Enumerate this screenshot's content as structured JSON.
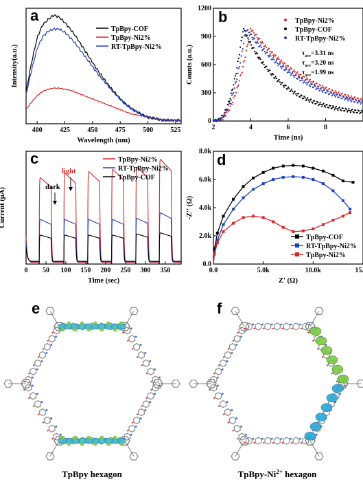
{
  "panels": {
    "a": "a",
    "b": "b",
    "c": "c",
    "d": "d",
    "e": "e",
    "f": "f"
  },
  "captions": {
    "e": "TpBpy hexagon",
    "f_main": "TpBpy-Ni",
    "f_sup": "2+",
    "f_tail": " hexagon"
  },
  "colors": {
    "black": "#000000",
    "red": "#d62728",
    "blue": "#1f3fbf"
  },
  "chart_data": [
    {
      "id": "a",
      "type": "line",
      "xlabel": "Wavelength (nm)",
      "ylabel": "Intensity(a.u.)",
      "xlim": [
        390,
        530
      ],
      "ylim": [
        0,
        1
      ],
      "xticks": [
        400,
        425,
        450,
        475,
        500,
        525
      ],
      "series": [
        {
          "name": "TpBpy-COF",
          "color": "#000000",
          "x": [
            390,
            395,
            400,
            405,
            410,
            415,
            420,
            425,
            430,
            435,
            440,
            445,
            450,
            455,
            460,
            465,
            470,
            475,
            480,
            485,
            490,
            495,
            500,
            505,
            510,
            515,
            520,
            525,
            530
          ],
          "y": [
            0.28,
            0.55,
            0.78,
            0.9,
            0.95,
            0.99,
            0.97,
            0.92,
            0.86,
            0.79,
            0.71,
            0.63,
            0.55,
            0.47,
            0.4,
            0.33,
            0.27,
            0.21,
            0.16,
            0.12,
            0.09,
            0.06,
            0.04,
            0.03,
            0.02,
            0.01,
            0.01,
            0.01,
            0.01
          ]
        },
        {
          "name": "TpBpy-Ni2%",
          "color": "#d62728",
          "x": [
            390,
            395,
            400,
            405,
            410,
            415,
            420,
            425,
            430,
            435,
            440,
            445,
            450,
            455,
            460,
            465,
            470,
            475,
            480,
            485,
            490,
            495,
            500,
            505,
            510,
            515,
            520,
            525,
            530
          ],
          "y": [
            0.11,
            0.18,
            0.24,
            0.28,
            0.3,
            0.31,
            0.31,
            0.3,
            0.29,
            0.27,
            0.25,
            0.23,
            0.21,
            0.19,
            0.17,
            0.15,
            0.13,
            0.11,
            0.09,
            0.07,
            0.06,
            0.05,
            0.04,
            0.03,
            0.02,
            0.02,
            0.01,
            0.01,
            0.01
          ]
        },
        {
          "name": "RT-TpBpy-Ni2%",
          "color": "#1f3fbf",
          "x": [
            390,
            395,
            400,
            405,
            410,
            415,
            420,
            425,
            430,
            435,
            440,
            445,
            450,
            455,
            460,
            465,
            470,
            475,
            480,
            485,
            490,
            495,
            500,
            505,
            510,
            515,
            520,
            525,
            530
          ],
          "y": [
            0.25,
            0.48,
            0.68,
            0.79,
            0.84,
            0.86,
            0.86,
            0.83,
            0.78,
            0.72,
            0.65,
            0.58,
            0.51,
            0.44,
            0.38,
            0.32,
            0.26,
            0.21,
            0.16,
            0.12,
            0.09,
            0.06,
            0.04,
            0.03,
            0.02,
            0.01,
            0.01,
            0.01,
            0.01
          ]
        }
      ]
    },
    {
      "id": "b",
      "type": "scatter",
      "xlabel": "Time (ns)",
      "ylabel": "Counts (a.u.)",
      "xlim": [
        2,
        10
      ],
      "ylim": [
        0,
        1200
      ],
      "xticks": [
        2,
        4,
        6,
        8
      ],
      "yticks": [
        0,
        300,
        600,
        900,
        1200
      ],
      "annotations": {
        "tau_symbol": "τ",
        "tau_sub": "ave",
        "values": [
          "=3.31 ns",
          "=3.20 ns",
          "=1.99 ns"
        ]
      },
      "series": [
        {
          "name": "TpBpy-Ni2%",
          "color": "#d62728",
          "tau": 3.31,
          "t0": 2.1,
          "tp": 4.0
        },
        {
          "name": "TpBpy-COF",
          "color": "#000000",
          "tau": 1.99,
          "t0": 2.1,
          "tp": 3.6
        },
        {
          "name": "RT-TpBpy-Ni2%",
          "color": "#1f3fbf",
          "tau": 3.2,
          "t0": 2.1,
          "tp": 3.75
        }
      ]
    },
    {
      "id": "c",
      "type": "line",
      "xlabel": "Time (sec)",
      "ylabel": "Current (μA)",
      "xlim": [
        0,
        390
      ],
      "ylim": [
        0,
        2.0
      ],
      "xticks": [
        0,
        50,
        100,
        150,
        200,
        250,
        300,
        350
      ],
      "annotations": {
        "dark": "dark",
        "light": "light"
      },
      "on_intervals": [
        [
          33,
          63
        ],
        [
          95,
          125
        ],
        [
          155,
          185
        ],
        [
          215,
          245
        ],
        [
          276,
          306
        ],
        [
          335,
          365
        ]
      ],
      "series": [
        {
          "name": "TpBpy-Ni2%",
          "color": "#d62728",
          "peaks": [
            1.55,
            1.63,
            1.66,
            1.7,
            1.74,
            1.88
          ]
        },
        {
          "name": "RT-TpBpy-Ni2%",
          "color": "#1f3fbf",
          "peaks": [
            0.8,
            0.8,
            0.8,
            0.8,
            0.82,
            0.92
          ]
        },
        {
          "name": "TpBpy-COF",
          "color": "#000000",
          "peaks": [
            0.52,
            0.52,
            0.52,
            0.52,
            0.54,
            0.56
          ]
        }
      ]
    },
    {
      "id": "d",
      "type": "line",
      "xlabel": "Z' (Ω)",
      "ylabel": "-Z'' (Ω)",
      "xlim": [
        0,
        15000
      ],
      "ylim": [
        0,
        8000
      ],
      "xtick_labels": [
        "0.0",
        "5.0k",
        "10.0k",
        "15.0k"
      ],
      "xticks": [
        0,
        5000,
        10000,
        15000
      ],
      "ytick_labels": [
        "0.0",
        "2.0k",
        "4.0k",
        "6.0k",
        "8.0k"
      ],
      "yticks": [
        0,
        2000,
        4000,
        6000,
        8000
      ],
      "series": [
        {
          "name": "TpBpy-COF",
          "color": "#000000",
          "marker": "square",
          "x": [
            0,
            100,
            400,
            1000,
            2000,
            3000,
            4000,
            5000,
            6000,
            7000,
            8000,
            9000,
            10000,
            11000,
            12000,
            13000,
            14000
          ],
          "y": [
            0,
            1100,
            2200,
            3400,
            4600,
            5500,
            6100,
            6500,
            6800,
            6950,
            7000,
            6950,
            6800,
            6600,
            6300,
            5900,
            5800
          ]
        },
        {
          "name": "RT-TpBpy-Ni2%",
          "color": "#1f3fbf",
          "marker": "square",
          "x": [
            0,
            100,
            400,
            1000,
            2000,
            3000,
            4000,
            5000,
            6000,
            7000,
            8000,
            9000,
            10000,
            11000,
            12000,
            13000,
            13700
          ],
          "y": [
            0,
            800,
            1700,
            2800,
            3900,
            4700,
            5300,
            5700,
            6000,
            6150,
            6200,
            6150,
            6000,
            5700,
            5200,
            4500,
            3900
          ]
        },
        {
          "name": "TpBpy-Ni2%",
          "color": "#d62728",
          "marker": "square",
          "x": [
            0,
            100,
            400,
            1000,
            2000,
            3000,
            4000,
            5000,
            6000,
            7000,
            8000,
            9000,
            10000,
            11000,
            12000,
            13000,
            13700
          ],
          "y": [
            0,
            700,
            1500,
            2300,
            2900,
            3300,
            3400,
            3300,
            3000,
            2600,
            2300,
            2350,
            2500,
            2800,
            3100,
            3400,
            3650
          ]
        }
      ]
    }
  ]
}
